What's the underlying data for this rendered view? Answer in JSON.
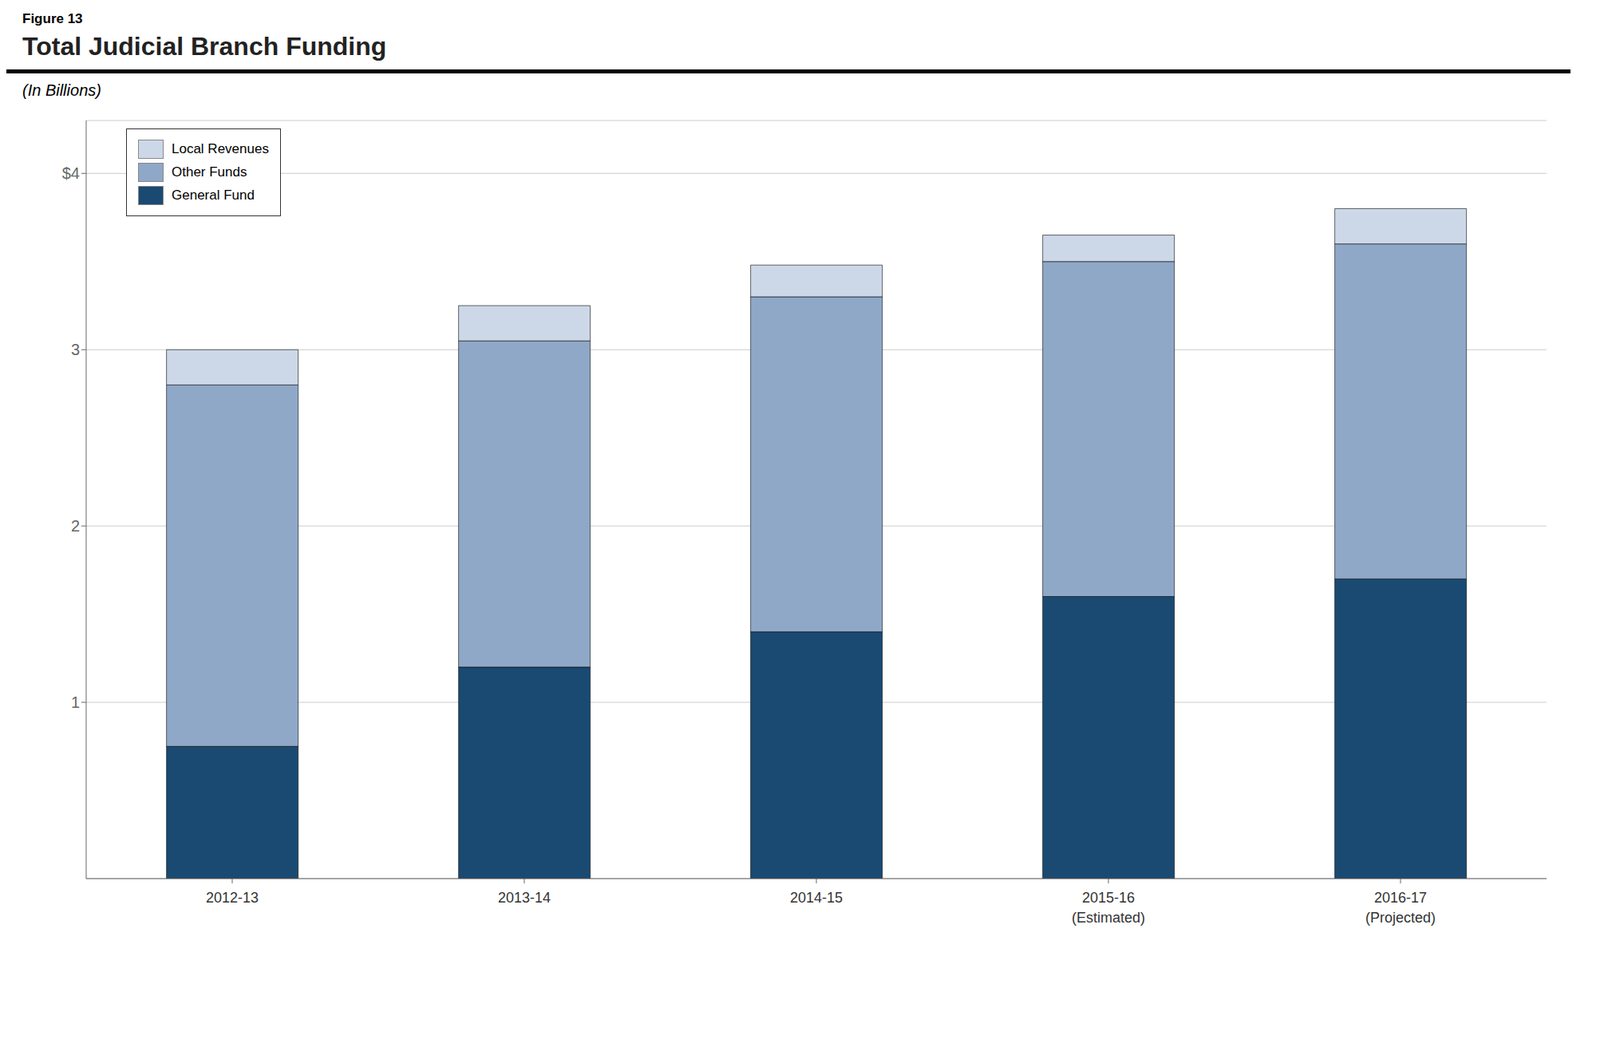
{
  "chart_data": {
    "type": "bar",
    "title": "Total Judicial Branch Funding",
    "subtitle": "(In Billions)",
    "annotations": [
      "Figure 13"
    ],
    "categories": [
      "2012-13",
      "2013-14",
      "2014-15",
      "2015-16\n(Estimated)",
      "2016-17\n(Projected)"
    ],
    "series": [
      {
        "name": "General Fund",
        "color": "#1a4a72",
        "values": [
          0.75,
          1.2,
          1.4,
          1.6,
          1.7
        ]
      },
      {
        "name": "Other Funds",
        "color": "#8fa8c8",
        "values": [
          2.05,
          1.85,
          1.9,
          1.9,
          1.9
        ]
      },
      {
        "name": "Local Revenues",
        "color": "#ccd8e8",
        "values": [
          0.2,
          0.2,
          0.18,
          0.15,
          0.2
        ]
      }
    ],
    "stacked": true,
    "ylim": [
      0,
      4.3
    ],
    "yticks": [
      1,
      2,
      3,
      {
        "value": 4,
        "label": "$4"
      }
    ],
    "grid": true,
    "legend": "upper left"
  }
}
